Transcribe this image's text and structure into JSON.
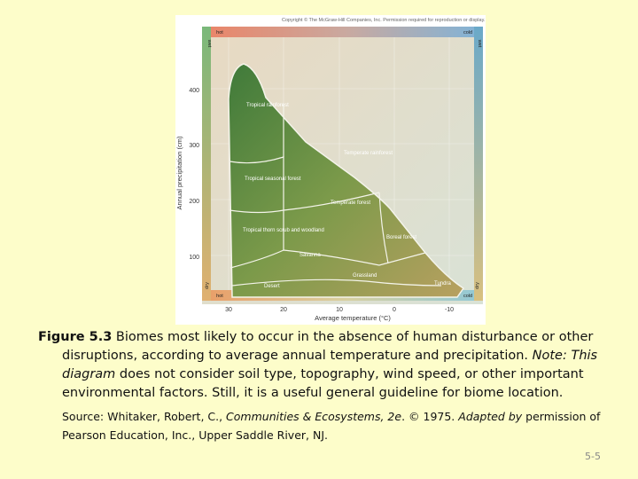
{
  "figure": {
    "copyright": "Copyright © The McGraw-Hill Companies, Inc. Permission required for reproduction or display.",
    "y_axis_label": "Annual precipitation (cm)",
    "x_axis_label": "Average temperature (°C)",
    "y_ticks": [
      "400",
      "300",
      "200",
      "100"
    ],
    "x_ticks": [
      "30",
      "20",
      "10",
      "0",
      "-10"
    ],
    "corners": {
      "top_left": "hot",
      "top_left_side": "wet",
      "top_right": "cold",
      "top_right_side": "wet",
      "bottom_left": "hot",
      "bottom_left_side": "dry",
      "bottom_right": "cold",
      "bottom_right_side": "dry"
    },
    "biomes": [
      "Tropical rainforest",
      "Temperate rainforest",
      "Tropical seasonal forest",
      "Temperate forest",
      "Tropical thorn scrub and woodland",
      "Boreal forest",
      "Savanna",
      "Grassland",
      "Desert",
      "Tundra"
    ]
  },
  "caption": {
    "label": "Figure 5.3",
    "text": " Biomes most likely to occur in the absence of human disturbance or other disruptions, according to average annual temperature and precipitation. ",
    "note": "Note: This diagram",
    "text_after_note": " does not consider soil type, topography, wind speed, or other important environmental factors. Still, it is a useful general guideline for biome location."
  },
  "source": {
    "prefix": "Source: Whitaker, Robert, C., ",
    "book": "Communities & Ecosystems, 2e",
    "middle": ". © 1975. ",
    "adapted": "Adapted by",
    "suffix": " permission of Pearson Education, Inc., Upper Saddle River, NJ."
  },
  "page_number": "5-5"
}
